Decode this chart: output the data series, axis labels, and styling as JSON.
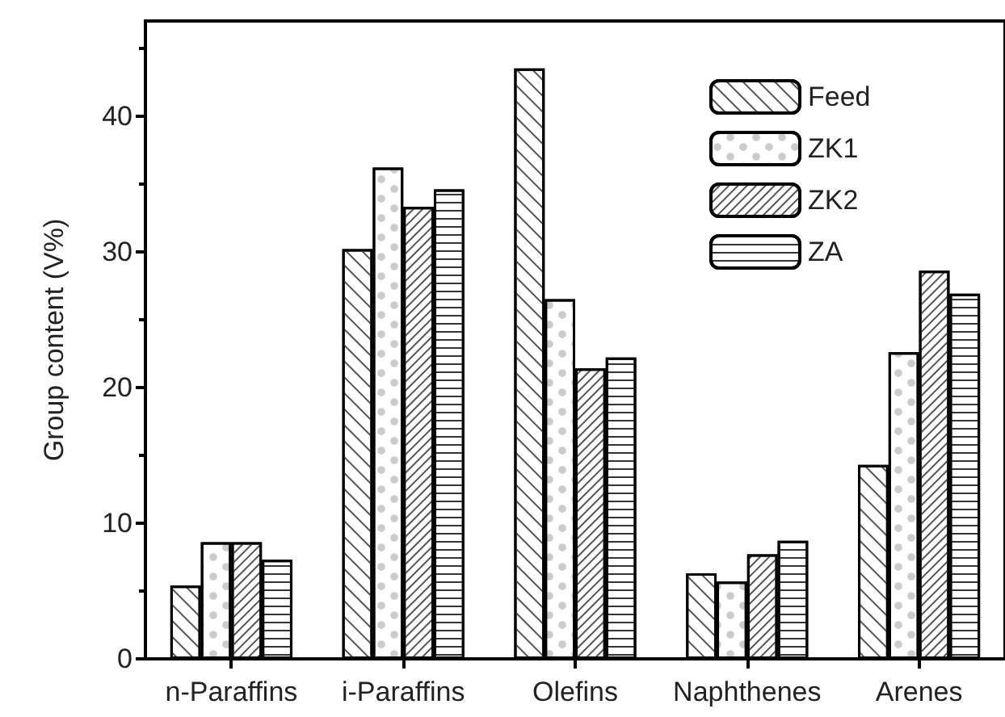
{
  "chart_data": {
    "type": "bar",
    "ylabel": "Group content (V%)",
    "categories": [
      "n-Paraffins",
      "i-Paraffins",
      "Olefins",
      "Naphthenes",
      "Arenes"
    ],
    "series": [
      {
        "name": "Feed",
        "color": "#ffffff",
        "values": [
          5.4,
          30.2,
          43.5,
          6.3,
          14.3
        ]
      },
      {
        "name": "ZK1",
        "color": "#ffffff",
        "values": [
          8.6,
          36.2,
          26.5,
          5.7,
          22.6
        ]
      },
      {
        "name": "ZK2",
        "color": "#ffffff",
        "values": [
          8.6,
          33.3,
          21.4,
          7.7,
          28.6
        ]
      },
      {
        "name": "ZA",
        "color": "#ffffff",
        "values": [
          7.3,
          34.6,
          22.2,
          8.7,
          26.9
        ]
      }
    ],
    "ylim": [
      0,
      47
    ],
    "yticks": [
      0,
      10,
      20,
      30,
      40
    ],
    "grid": false,
    "legend": "top right"
  }
}
